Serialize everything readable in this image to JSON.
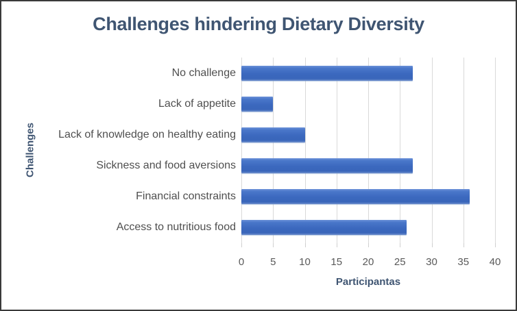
{
  "chart_data": {
    "type": "bar",
    "orientation": "horizontal",
    "title": "Challenges hindering Dietary Diversity",
    "xlabel": "Participantas",
    "ylabel": "Challenges",
    "categories": [
      "No challenge",
      "Lack of appetite",
      "Lack of knowledge on healthy eating",
      "Sickness and food aversions",
      "Financial constraints",
      "Access to nutritious food"
    ],
    "values": [
      27,
      5,
      10,
      27,
      36,
      26
    ],
    "xlim": [
      0,
      40
    ],
    "xticks": [
      0,
      5,
      10,
      15,
      20,
      25,
      30,
      35,
      40
    ],
    "grid": "vertical",
    "legend": "none",
    "colors": {
      "bar": "#4472C4",
      "title": "#3F5572",
      "category_labels": "#4F4F4F",
      "tick_labels": "#595959",
      "gridlines": "#D9D9D9",
      "frame_border": "#3A3A3A"
    }
  }
}
